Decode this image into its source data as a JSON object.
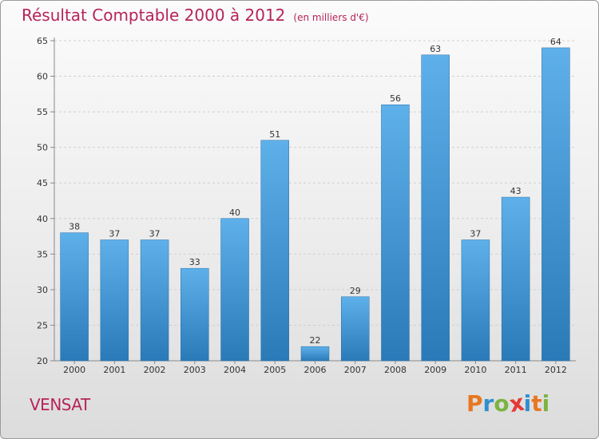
{
  "chart_data": {
    "type": "bar",
    "title": "Résultat Comptable 2000 à 2012",
    "subtitle": "(en milliers d'€)",
    "xlabel": "",
    "ylabel": "",
    "categories": [
      "2000",
      "2001",
      "2002",
      "2003",
      "2004",
      "2005",
      "2006",
      "2007",
      "2008",
      "2009",
      "2010",
      "2011",
      "2012"
    ],
    "values": [
      38,
      37,
      37,
      33,
      40,
      51,
      22,
      29,
      56,
      63,
      37,
      43,
      64
    ],
    "ylim": [
      20,
      65
    ],
    "yticks": [
      20,
      25,
      30,
      35,
      40,
      45,
      50,
      55,
      60,
      65
    ],
    "grid": true,
    "bar_color_top": "#5eb0ea",
    "bar_color_bottom": "#2a7ab8"
  },
  "footer": {
    "commune": "VENSAT",
    "logo_letters": [
      "P",
      "r",
      "o",
      "x",
      "i",
      "t",
      "i"
    ],
    "logo_colors": [
      "#e87722",
      "#2f8fd1",
      "#7cb342",
      "#e53935",
      "#2f8fd1",
      "#e87722",
      "#7cb342"
    ]
  }
}
